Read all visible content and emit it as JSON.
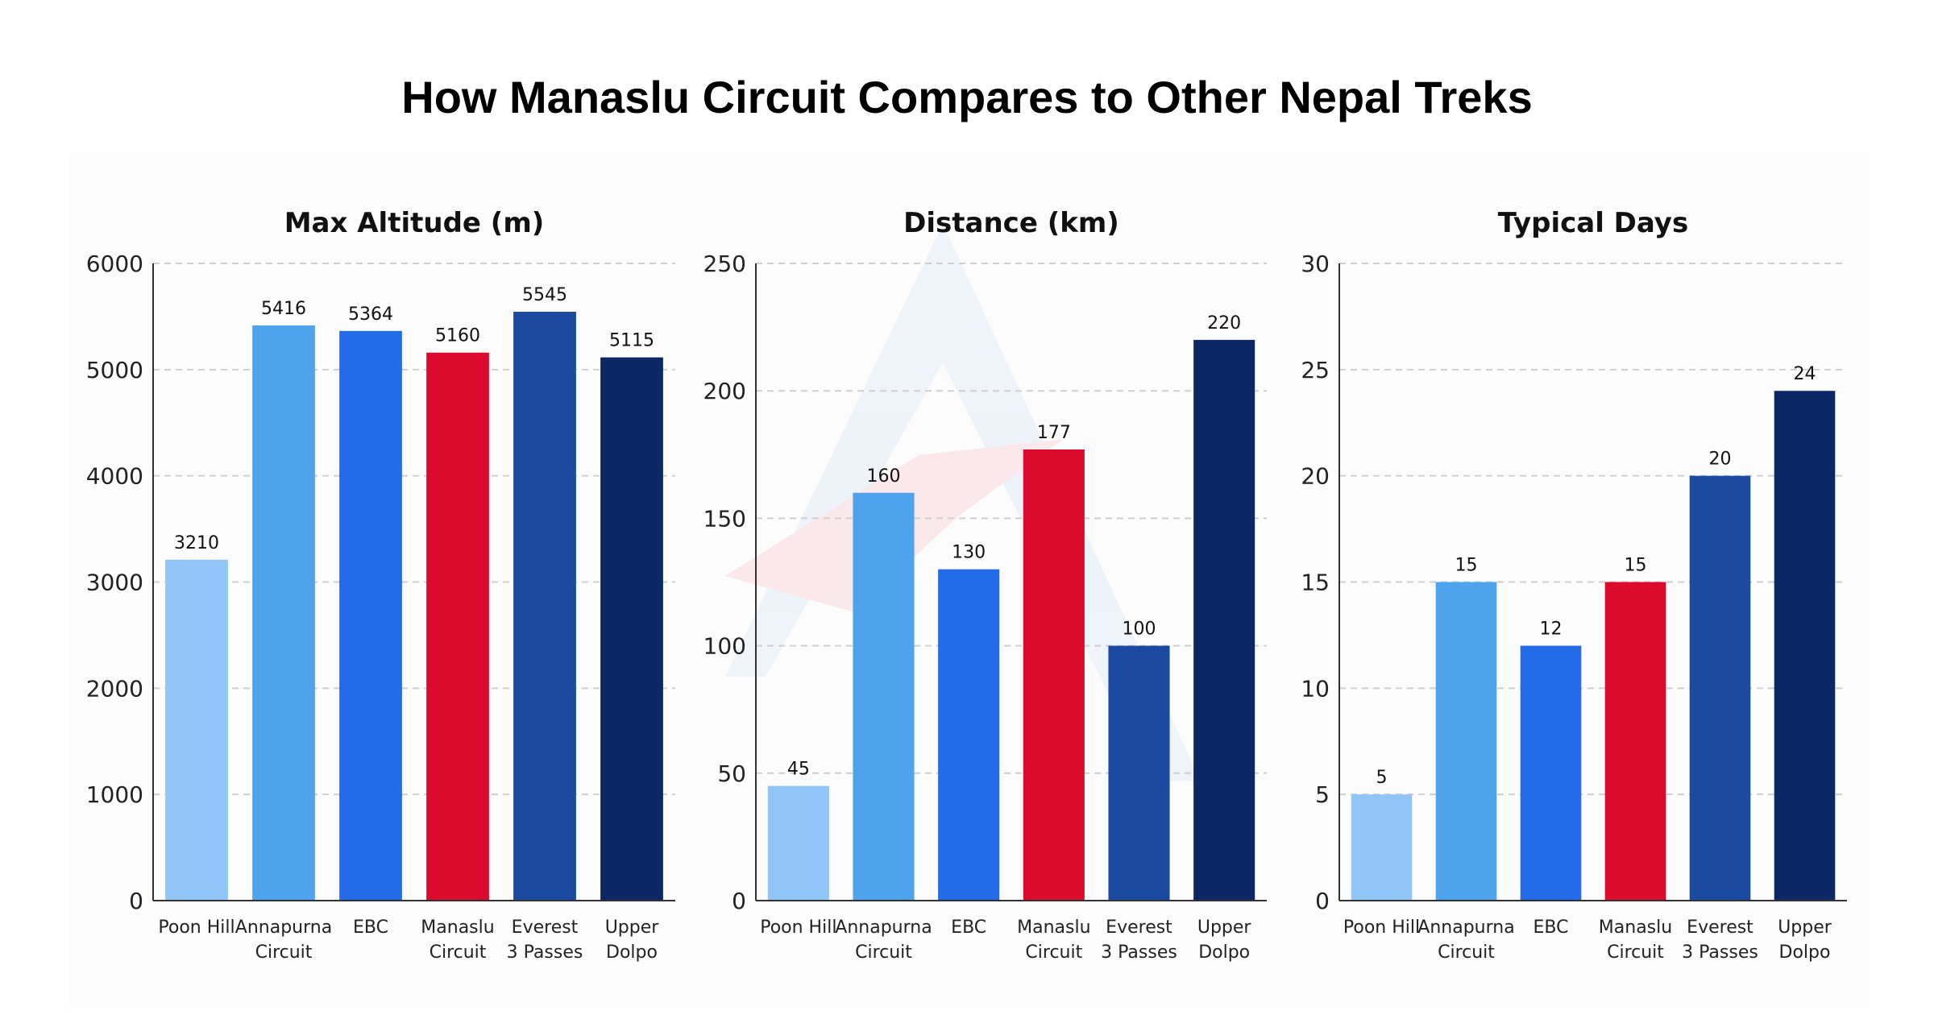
{
  "title": "How Manaslu Circuit Compares to Other Nepal Treks",
  "colors": {
    "Poon Hill": "#91c4f7",
    "Annapurna Circuit": "#4fa3ec",
    "EBC": "#236be8",
    "Manaslu Circuit": "#dc0a2d",
    "Everest 3 Passes": "#1b4aa0",
    "Upper Dolpo": "#0c2766",
    "grid": "#cfcfcf",
    "axis": "#333333",
    "watermark_blue": "#e3ecf7",
    "watermark_red": "#f9d8dd"
  },
  "chart_data": [
    {
      "type": "bar",
      "title": "Max Altitude (m)",
      "categories": [
        "Poon Hill",
        "Annapurna Circuit",
        "EBC",
        "Manaslu Circuit",
        "Everest 3 Passes",
        "Upper Dolpo"
      ],
      "category_lines": [
        [
          "Poon Hill"
        ],
        [
          "Annapurna",
          "Circuit"
        ],
        [
          "EBC"
        ],
        [
          "Manaslu",
          "Circuit"
        ],
        [
          "Everest",
          "3 Passes"
        ],
        [
          "Upper",
          "Dolpo"
        ]
      ],
      "values": [
        3210,
        5416,
        5364,
        5160,
        5545,
        5115
      ],
      "value_labels": [
        "3210",
        "5416",
        "5364",
        "5160",
        "5545",
        "5115"
      ],
      "ylim": [
        0,
        6000
      ],
      "yticks": [
        0,
        1000,
        2000,
        3000,
        4000,
        5000,
        6000
      ],
      "grid": true
    },
    {
      "type": "bar",
      "title": "Distance (km)",
      "categories": [
        "Poon Hill",
        "Annapurna Circuit",
        "EBC",
        "Manaslu Circuit",
        "Everest 3 Passes",
        "Upper Dolpo"
      ],
      "category_lines": [
        [
          "Poon Hill"
        ],
        [
          "Annapurna",
          "Circuit"
        ],
        [
          "EBC"
        ],
        [
          "Manaslu",
          "Circuit"
        ],
        [
          "Everest",
          "3 Passes"
        ],
        [
          "Upper",
          "Dolpo"
        ]
      ],
      "values": [
        45,
        160,
        130,
        177,
        100,
        220
      ],
      "value_labels": [
        "45",
        "160",
        "130",
        "177",
        "100",
        "220"
      ],
      "ylim": [
        0,
        250
      ],
      "yticks": [
        0,
        50,
        100,
        150,
        200,
        250
      ],
      "grid": true
    },
    {
      "type": "bar",
      "title": "Typical Days",
      "categories": [
        "Poon Hill",
        "Annapurna Circuit",
        "EBC",
        "Manaslu Circuit",
        "Everest 3 Passes",
        "Upper Dolpo"
      ],
      "category_lines": [
        [
          "Poon Hill"
        ],
        [
          "Annapurna",
          "Circuit"
        ],
        [
          "EBC"
        ],
        [
          "Manaslu",
          "Circuit"
        ],
        [
          "Everest",
          "3 Passes"
        ],
        [
          "Upper",
          "Dolpo"
        ]
      ],
      "values": [
        5,
        15,
        12,
        15,
        20,
        24
      ],
      "value_labels": [
        "5",
        "15",
        "12",
        "15",
        "20",
        "24"
      ],
      "ylim": [
        0,
        30
      ],
      "yticks": [
        0,
        5,
        10,
        15,
        20,
        25,
        30
      ],
      "grid": true
    }
  ]
}
